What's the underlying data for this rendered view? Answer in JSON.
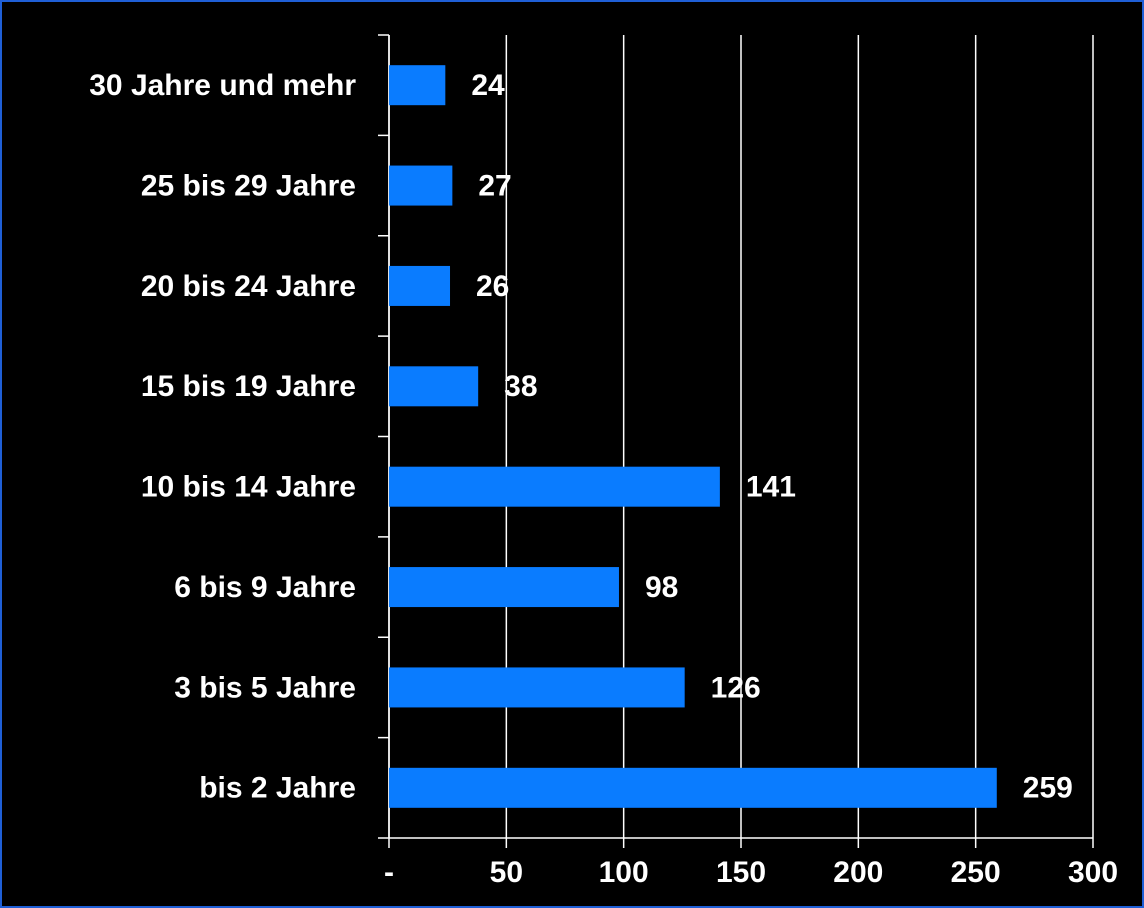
{
  "chart_data": {
    "type": "hbar",
    "categories": [
      "30 Jahre und mehr",
      "25 bis 29 Jahre",
      "20 bis 24 Jahre",
      "15 bis 19 Jahre",
      "10 bis 14 Jahre",
      "6 bis 9 Jahre",
      "3 bis 5 Jahre",
      "bis 2 Jahre"
    ],
    "values": [
      24,
      27,
      26,
      38,
      141,
      98,
      126,
      259
    ],
    "color": "#0a7cff",
    "xlim": [
      0,
      300
    ],
    "xticks": [
      {
        "value": 0,
        "label": "-"
      },
      50,
      100,
      150,
      200,
      250,
      300
    ],
    "grid": true
  }
}
